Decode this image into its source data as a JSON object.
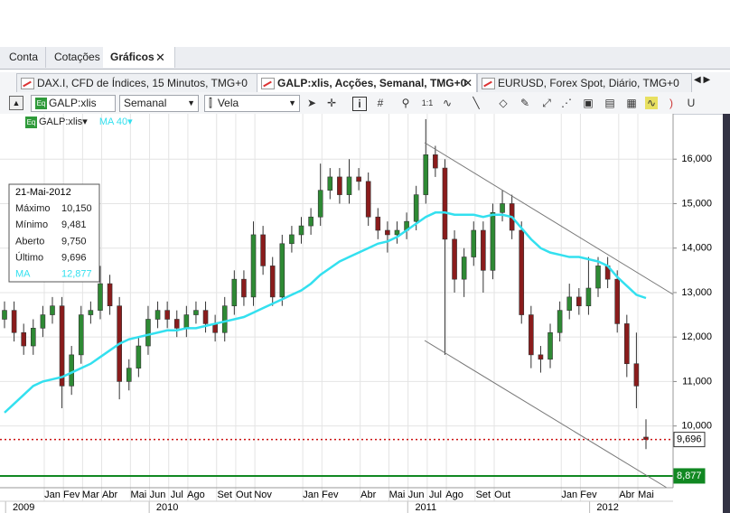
{
  "tabs": [
    "Conta",
    "Cotações",
    "Gráficos"
  ],
  "chart_tabs": [
    "DAX.I, CFD de Índices, 15 Minutos, TMG+0",
    "GALP:xlis, Acções, Semanal, TMG+0",
    "EURUSD, Forex Spot, Diário, TMG+0"
  ],
  "toolbar": {
    "symbol": "GALP:xlis",
    "period": "Semanal",
    "style": "Vela"
  },
  "chart_data": {
    "type": "candlestick",
    "symbol_label": "GALP:xlis",
    "categories": [
      null,
      null,
      null,
      null,
      null,
      "Jan",
      null,
      "Fev",
      null,
      "Mar",
      null,
      "Abr",
      null,
      null,
      "Mai",
      null,
      "Jun",
      null,
      "Jul",
      null,
      "Ago",
      null,
      null,
      "Set",
      null,
      "Out",
      null,
      "Nov",
      null,
      null,
      null,
      null,
      "Jan",
      null,
      "Fev",
      null,
      null,
      null,
      "Abr",
      null,
      null,
      "Mai",
      null,
      "Jun",
      null,
      "Jul",
      null,
      "Ago",
      null,
      null,
      "Set",
      null,
      "Out",
      null,
      null,
      null,
      null,
      null,
      null,
      "Jan",
      null,
      "Fev",
      null,
      null,
      null,
      "Abr",
      null,
      "Mai"
    ],
    "years": [
      null,
      null,
      "2009",
      null,
      null,
      null,
      null,
      null,
      null,
      null,
      null,
      null,
      null,
      null,
      null,
      null,
      null,
      "2010",
      null,
      null,
      null,
      null,
      null,
      null,
      null,
      null,
      null,
      null,
      null,
      null,
      null,
      null,
      null,
      null,
      null,
      null,
      null,
      null,
      null,
      null,
      null,
      null,
      null,
      null,
      "2011",
      null,
      null,
      null,
      null,
      null,
      null,
      null,
      null,
      null,
      null,
      null,
      null,
      null,
      null,
      null,
      null,
      null,
      null,
      "2012",
      null,
      null,
      null,
      null
    ],
    "open": [
      12400,
      12600,
      12100,
      11800,
      12200,
      12500,
      12700,
      10900,
      11600,
      12500,
      12600,
      13200,
      12700,
      11000,
      11300,
      11800,
      12400,
      12600,
      12400,
      12200,
      12500,
      12600,
      12300,
      12100,
      12700,
      13300,
      12900,
      14300,
      13600,
      12900,
      14100,
      14300,
      14500,
      14700,
      15300,
      15600,
      15200,
      15600,
      15500,
      14700,
      14400,
      14300,
      14400,
      14600,
      15200,
      16100,
      15800,
      14200,
      13300,
      13800,
      14400,
      13500,
      14800,
      15000,
      14400,
      12500,
      11600,
      11500,
      12100,
      12600,
      12900,
      12700,
      13100,
      13600,
      13300,
      12300,
      11400,
      9750
    ],
    "high": [
      12800,
      12800,
      12300,
      12400,
      12700,
      12900,
      12900,
      11800,
      12700,
      12800,
      13600,
      13400,
      12900,
      11500,
      12000,
      12700,
      12800,
      12800,
      12600,
      12700,
      12800,
      12800,
      12500,
      12900,
      13500,
      13500,
      14600,
      14500,
      13800,
      14300,
      14500,
      14700,
      14900,
      15900,
      15800,
      15800,
      16000,
      15800,
      15700,
      14900,
      14600,
      14600,
      14800,
      15400,
      16900,
      16300,
      16000,
      14400,
      14000,
      14600,
      14600,
      15000,
      15300,
      15200,
      14600,
      12700,
      11800,
      12300,
      12800,
      13200,
      13100,
      13800,
      13800,
      13800,
      13500,
      12500,
      12100,
      10150
    ],
    "low": [
      12200,
      11900,
      11600,
      11600,
      12000,
      12300,
      10400,
      10700,
      11400,
      12300,
      12400,
      12500,
      10600,
      10800,
      11100,
      11600,
      12200,
      12200,
      12000,
      12000,
      12300,
      12100,
      11900,
      11900,
      12500,
      12700,
      12700,
      13400,
      12700,
      12700,
      13900,
      14100,
      14300,
      14500,
      15100,
      15000,
      15000,
      15300,
      14500,
      14200,
      13900,
      14100,
      14200,
      14400,
      15000,
      15600,
      11600,
      13000,
      12900,
      13600,
      13000,
      13300,
      14600,
      14200,
      12300,
      11300,
      11200,
      11300,
      11900,
      12400,
      12500,
      12500,
      12900,
      13100,
      12100,
      11100,
      10400,
      9481
    ],
    "close": [
      12600,
      12100,
      11800,
      12200,
      12500,
      12700,
      10900,
      11600,
      12500,
      12600,
      13200,
      12700,
      11000,
      11300,
      11800,
      12400,
      12600,
      12400,
      12200,
      12500,
      12600,
      12300,
      12100,
      12700,
      13300,
      12900,
      14300,
      13600,
      12900,
      14100,
      14300,
      14500,
      14700,
      15300,
      15600,
      15200,
      15600,
      15500,
      14700,
      14400,
      14300,
      14400,
      14600,
      15200,
      16100,
      15800,
      14200,
      13300,
      13800,
      14400,
      13500,
      14800,
      15000,
      14400,
      12500,
      11600,
      11500,
      12100,
      12600,
      12900,
      12700,
      13100,
      13600,
      13300,
      12300,
      11400,
      10900,
      9696
    ],
    "up_color": "#2e8a34",
    "down_color": "#8a1c1c",
    "series": [
      {
        "name": "MA 40",
        "color": "#33e0ef",
        "values": [
          10300,
          10500,
          10700,
          10900,
          11000,
          11050,
          11100,
          11200,
          11300,
          11400,
          11550,
          11700,
          11850,
          11950,
          12000,
          12050,
          12100,
          12150,
          12150,
          12200,
          12200,
          12250,
          12300,
          12350,
          12400,
          12450,
          12550,
          12650,
          12750,
          12850,
          12950,
          13050,
          13200,
          13400,
          13550,
          13700,
          13800,
          13900,
          14000,
          14100,
          14150,
          14250,
          14400,
          14550,
          14700,
          14800,
          14800,
          14750,
          14750,
          14750,
          14700,
          14750,
          14750,
          14700,
          14450,
          14200,
          14000,
          13900,
          13850,
          13800,
          13800,
          13750,
          13700,
          13600,
          13350,
          13150,
          12950,
          12877
        ]
      }
    ],
    "ylim": [
      8612,
      17020
    ],
    "yticks": [
      {
        "value": 10000,
        "label": "10,000"
      },
      {
        "value": 11000,
        "label": "11,000"
      },
      {
        "value": 12000,
        "label": "12,000"
      },
      {
        "value": 13000,
        "label": "13,000"
      },
      {
        "value": 14000,
        "label": "14,000"
      },
      {
        "value": 15000,
        "label": "15,000"
      },
      {
        "value": 16000,
        "label": "16,000"
      }
    ],
    "last_price": {
      "value": 9696,
      "label": "9,696",
      "color": "#cc1111"
    },
    "stop_level": {
      "value": 8877,
      "label": "8,877",
      "color": "#118822"
    },
    "info_box": {
      "date": "21-Mai-2012",
      "rows": [
        [
          "Máximo",
          "10,150"
        ],
        [
          "Mínimo",
          "9,481"
        ],
        [
          "Aberto",
          "9,750"
        ],
        [
          "Último",
          "9,696"
        ],
        [
          "MA",
          "12,877"
        ]
      ]
    },
    "grid": true
  }
}
